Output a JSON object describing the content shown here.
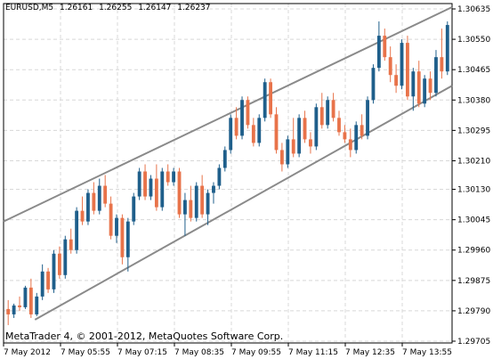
{
  "header": {
    "symbol": "EURUSD,M5",
    "open": "1.26161",
    "high": "1.26255",
    "low": "1.26147",
    "close": "1.26237"
  },
  "copyright": "MetaTrader 4, © 2001-2012, MetaQuotes Software Corp.",
  "colors": {
    "background": "#ffffff",
    "frame": "#000000",
    "grid": "#d8d8d8",
    "bull": "#1f5f8b",
    "bear": "#e8734a",
    "channel": "#8a8a8a"
  },
  "chart_data": {
    "type": "candlestick",
    "price_ticks": [
      "1.30635",
      "1.30550",
      "1.30465",
      "1.30380",
      "1.30295",
      "1.30210",
      "1.30130",
      "1.30045",
      "1.29960",
      "1.29875",
      "1.29790",
      "1.29705"
    ],
    "time_ticks": [
      "7 May 2012",
      "7 May 05:55",
      "7 May 07:15",
      "7 May 08:35",
      "7 May 09:55",
      "7 May 11:15",
      "7 May 12:35",
      "7 May 13:55"
    ],
    "ylim": [
      1.297,
      1.3065
    ],
    "grid": true,
    "candles": [
      [
        1.29795,
        1.2982,
        1.2975,
        1.2978
      ],
      [
        1.2978,
        1.2981,
        1.2977,
        1.29805
      ],
      [
        1.29805,
        1.2983,
        1.2979,
        1.298
      ],
      [
        1.298,
        1.2986,
        1.29795,
        1.29855
      ],
      [
        1.29855,
        1.2988,
        1.2977,
        1.2978
      ],
      [
        1.2978,
        1.2984,
        1.29775,
        1.2983
      ],
      [
        1.2983,
        1.2992,
        1.2982,
        1.299
      ],
      [
        1.299,
        1.2991,
        1.2984,
        1.2985
      ],
      [
        1.2985,
        1.2996,
        1.2984,
        1.2995
      ],
      [
        1.2995,
        1.2997,
        1.2988,
        1.2989
      ],
      [
        1.2989,
        1.3,
        1.2988,
        1.2999
      ],
      [
        1.2999,
        1.3002,
        1.2995,
        1.2996
      ],
      [
        1.2996,
        1.3008,
        1.2995,
        1.3007
      ],
      [
        1.3007,
        1.3011,
        1.3003,
        1.3004
      ],
      [
        1.3004,
        1.3013,
        1.3003,
        1.3012
      ],
      [
        1.3012,
        1.3015,
        1.3006,
        1.3007
      ],
      [
        1.3007,
        1.3016,
        1.3006,
        1.3014
      ],
      [
        1.3014,
        1.3017,
        1.3008,
        1.3009
      ],
      [
        1.3009,
        1.3011,
        1.2999,
        1.3
      ],
      [
        1.3,
        1.3006,
        1.2998,
        1.3005
      ],
      [
        1.3005,
        1.3006,
        1.2992,
        1.2994
      ],
      [
        1.2994,
        1.3005,
        1.299,
        1.3004
      ],
      [
        1.3004,
        1.3012,
        1.3003,
        1.3011
      ],
      [
        1.3011,
        1.3019,
        1.301,
        1.3018
      ],
      [
        1.3018,
        1.302,
        1.301,
        1.3011
      ],
      [
        1.3011,
        1.3017,
        1.301,
        1.3016
      ],
      [
        1.3016,
        1.302,
        1.3007,
        1.3008
      ],
      [
        1.3008,
        1.3019,
        1.3007,
        1.3018
      ],
      [
        1.3018,
        1.302,
        1.3014,
        1.3015
      ],
      [
        1.3015,
        1.3019,
        1.3014,
        1.3018
      ],
      [
        1.3018,
        1.3019,
        1.3005,
        1.3006
      ],
      [
        1.3006,
        1.3012,
        1.3,
        1.301
      ],
      [
        1.301,
        1.3014,
        1.3004,
        1.3005
      ],
      [
        1.3005,
        1.3015,
        1.3004,
        1.3014
      ],
      [
        1.3014,
        1.3017,
        1.3005,
        1.3006
      ],
      [
        1.3006,
        1.3013,
        1.3003,
        1.3012
      ],
      [
        1.3012,
        1.3015,
        1.3009,
        1.3014
      ],
      [
        1.3014,
        1.302,
        1.3013,
        1.3019
      ],
      [
        1.3019,
        1.3025,
        1.3018,
        1.3024
      ],
      [
        1.3024,
        1.3034,
        1.3023,
        1.3033
      ],
      [
        1.3033,
        1.3036,
        1.3027,
        1.3028
      ],
      [
        1.3028,
        1.3039,
        1.3027,
        1.3038
      ],
      [
        1.3038,
        1.3039,
        1.303,
        1.3031
      ],
      [
        1.3031,
        1.3033,
        1.3025,
        1.3026
      ],
      [
        1.3026,
        1.3034,
        1.3025,
        1.3033
      ],
      [
        1.3033,
        1.3044,
        1.3032,
        1.3043
      ],
      [
        1.3043,
        1.3044,
        1.3033,
        1.3034
      ],
      [
        1.3034,
        1.3036,
        1.3023,
        1.3024
      ],
      [
        1.3024,
        1.3026,
        1.3018,
        1.302
      ],
      [
        1.302,
        1.3028,
        1.3019,
        1.3027
      ],
      [
        1.3027,
        1.3033,
        1.3022,
        1.3023
      ],
      [
        1.3023,
        1.3034,
        1.3022,
        1.3033
      ],
      [
        1.3033,
        1.3035,
        1.3026,
        1.3027
      ],
      [
        1.3027,
        1.3029,
        1.3023,
        1.3025
      ],
      [
        1.3025,
        1.3037,
        1.3024,
        1.3036
      ],
      [
        1.3036,
        1.304,
        1.303,
        1.3031
      ],
      [
        1.3031,
        1.3039,
        1.303,
        1.3038
      ],
      [
        1.3038,
        1.304,
        1.3032,
        1.3033
      ],
      [
        1.3033,
        1.3035,
        1.3028,
        1.3029
      ],
      [
        1.3029,
        1.3031,
        1.3026,
        1.3027
      ],
      [
        1.3027,
        1.303,
        1.3022,
        1.3024
      ],
      [
        1.3024,
        1.3032,
        1.3023,
        1.3031
      ],
      [
        1.3031,
        1.3034,
        1.3027,
        1.3028
      ],
      [
        1.3028,
        1.3039,
        1.3027,
        1.3038
      ],
      [
        1.3038,
        1.3048,
        1.3037,
        1.3047
      ],
      [
        1.3047,
        1.306,
        1.3046,
        1.3056
      ],
      [
        1.3056,
        1.3058,
        1.3049,
        1.305
      ],
      [
        1.305,
        1.3053,
        1.3043,
        1.3045
      ],
      [
        1.3045,
        1.3048,
        1.304,
        1.3042
      ],
      [
        1.3042,
        1.3055,
        1.3041,
        1.3054
      ],
      [
        1.3054,
        1.3056,
        1.3038,
        1.3039
      ],
      [
        1.3039,
        1.3047,
        1.3035,
        1.3046
      ],
      [
        1.3046,
        1.3049,
        1.3036,
        1.3037
      ],
      [
        1.3037,
        1.3045,
        1.3036,
        1.3044
      ],
      [
        1.3044,
        1.3046,
        1.3038,
        1.304
      ],
      [
        1.304,
        1.3052,
        1.3039,
        1.305
      ],
      [
        1.305,
        1.3058,
        1.3044,
        1.3046
      ],
      [
        1.3046,
        1.306,
        1.3045,
        1.3059
      ]
    ],
    "channel_lines": [
      {
        "x": [
          0.0,
          1.0
        ],
        "y": [
          1.3004,
          1.3064
        ]
      },
      {
        "x": [
          0.07,
          1.0
        ],
        "y": [
          1.29765,
          1.3042
        ]
      }
    ]
  }
}
